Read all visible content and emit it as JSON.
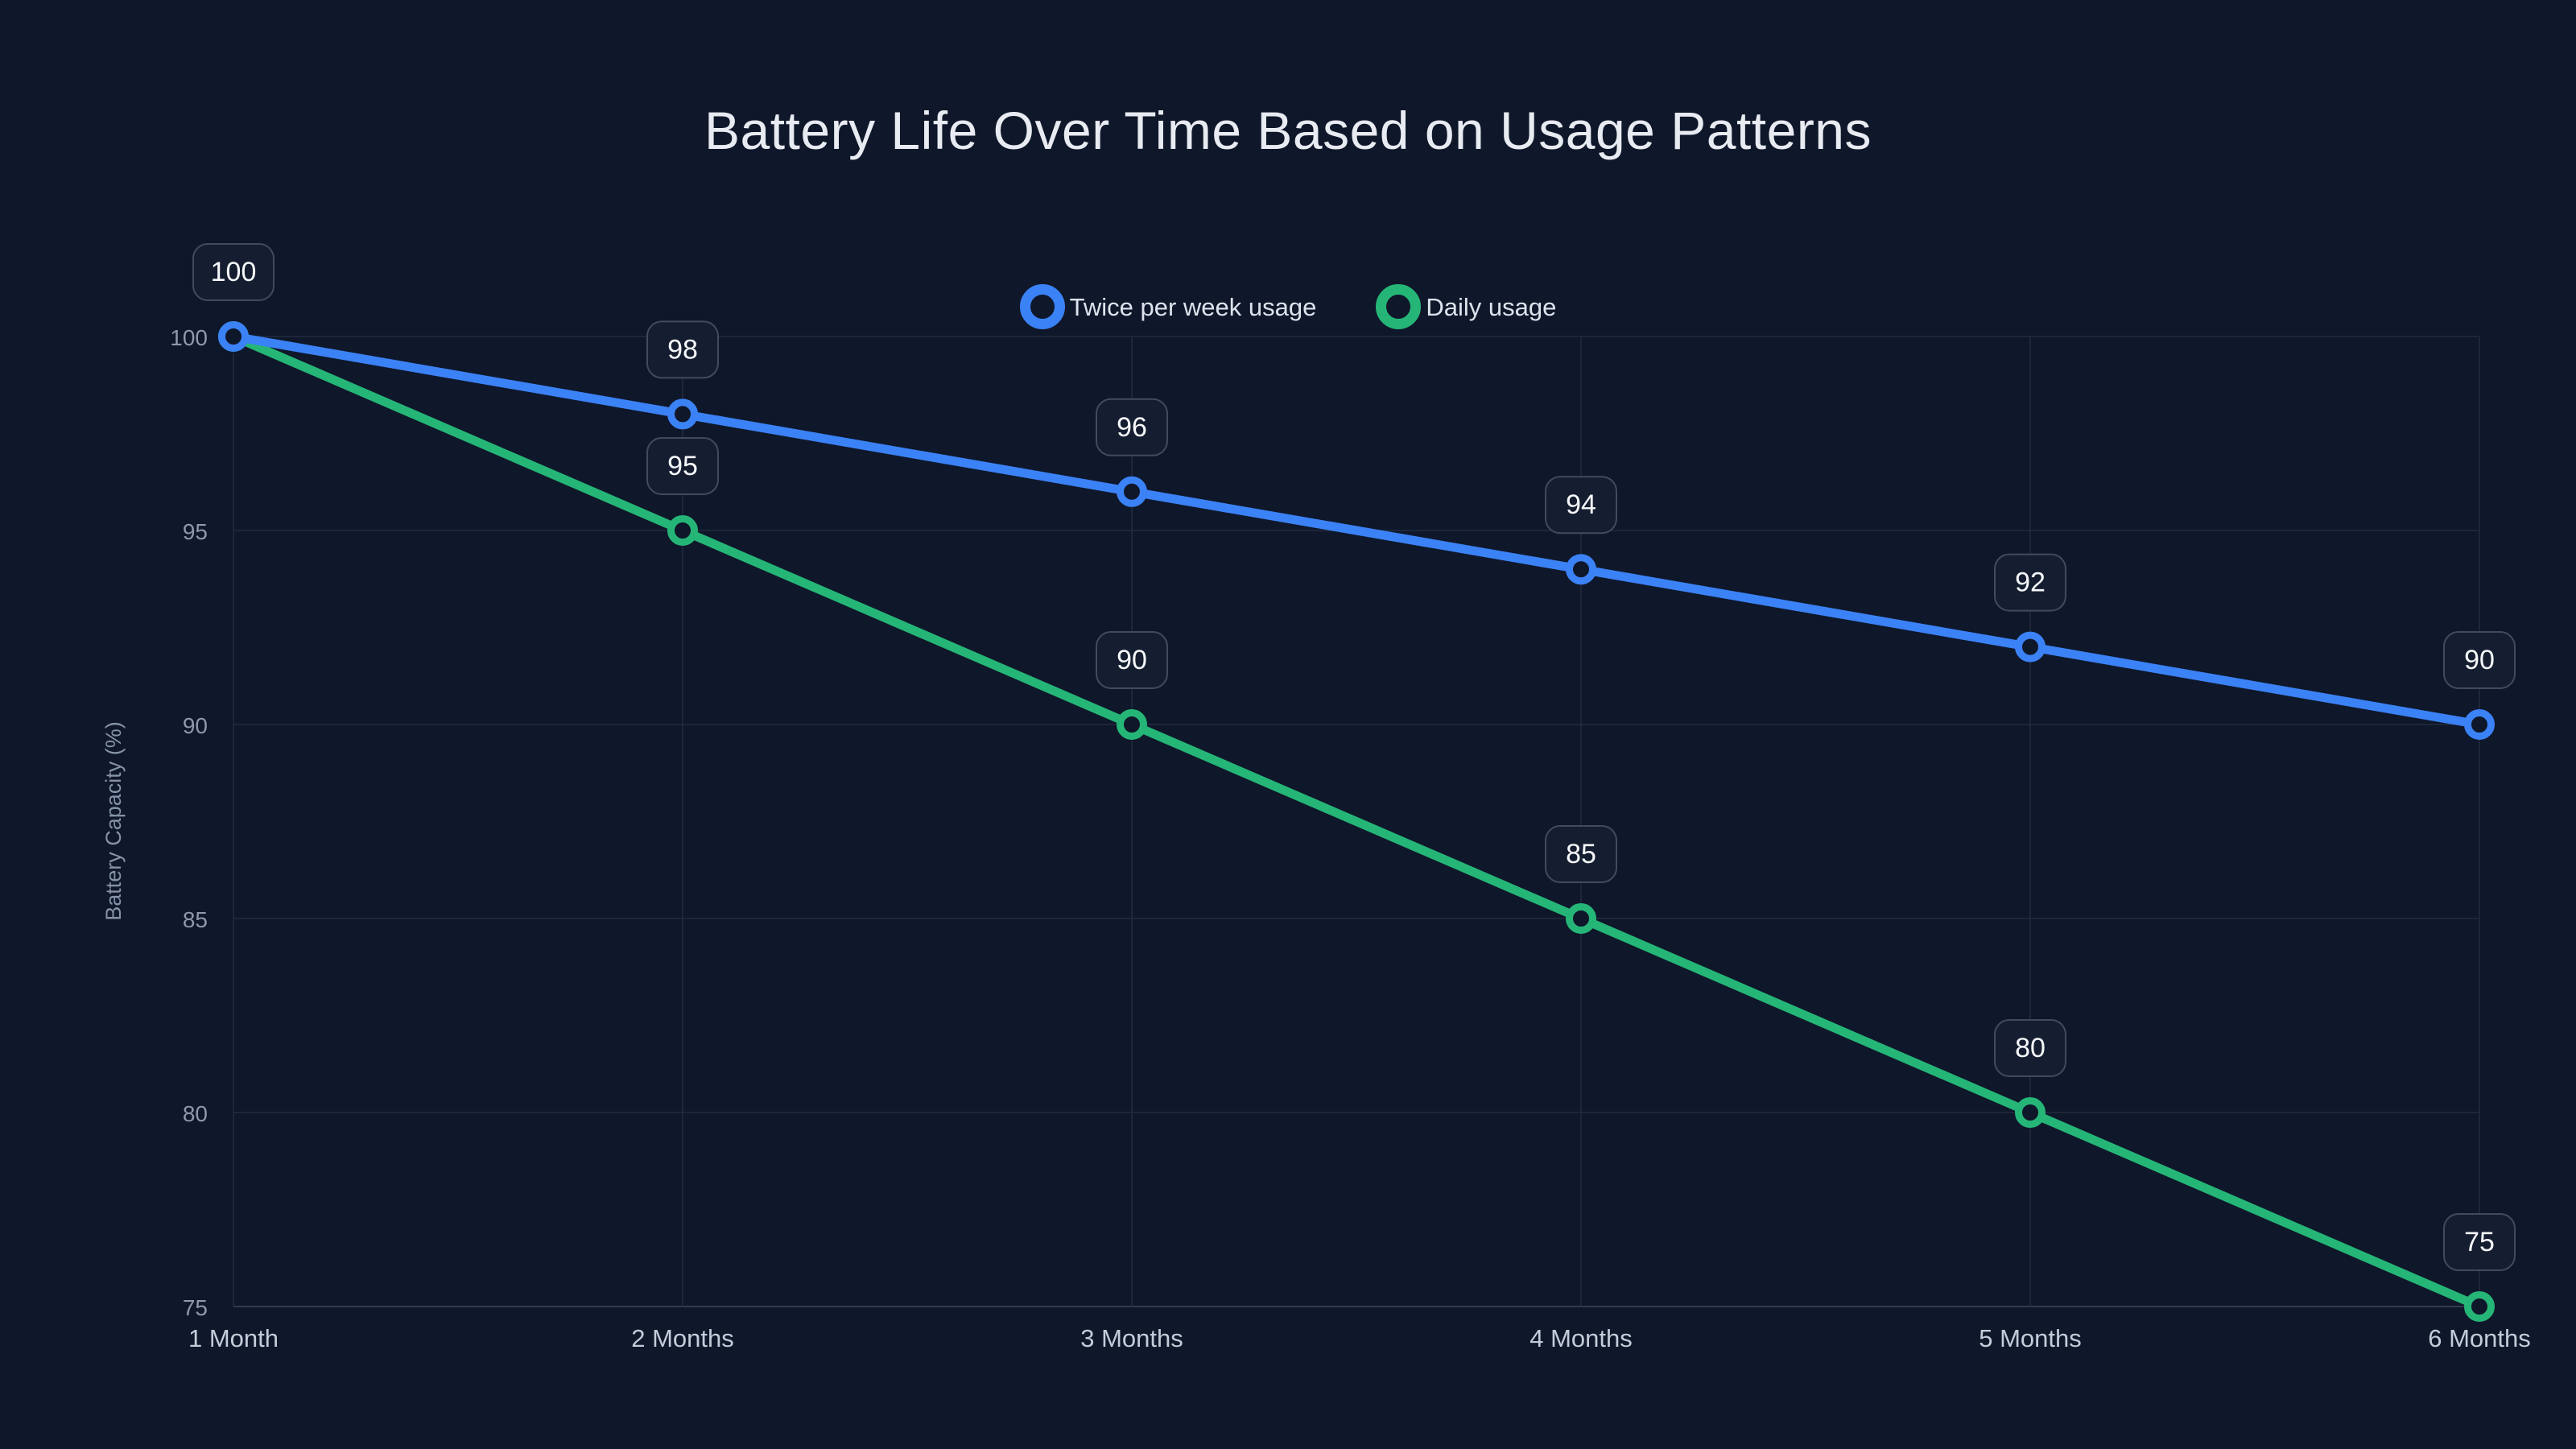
{
  "title": "Battery Life Over Time Based on Usage Patterns",
  "colors": {
    "background": "#0f172a",
    "grid": "#232c3e",
    "axis_line": "#323b4f",
    "title_text": "#e8ebf1",
    "legend_text": "#dde3ec",
    "y_tick_text": "#8d99ac",
    "x_tick_text": "#c3ccd9",
    "y_axis_title_text": "#8493a8",
    "badge_fill": "#151e30",
    "badge_border": "#414b5e",
    "badge_text": "#f5f7fa",
    "series_blue": "#3b82f6",
    "series_green": "#25b677"
  },
  "legend": {
    "items": [
      {
        "label": "Twice per week usage",
        "marker": "ring-icon",
        "color": "#3b82f6"
      },
      {
        "label": "Daily usage",
        "marker": "ring-icon",
        "color": "#25b677"
      }
    ]
  },
  "chart_data": {
    "type": "line",
    "title": "Battery Life Over Time Based on Usage Patterns",
    "xlabel": "",
    "ylabel": "Battery Capacity (%)",
    "categories": [
      "1 Month",
      "2 Months",
      "3 Months",
      "4 Months",
      "5 Months",
      "6 Months"
    ],
    "series": [
      {
        "name": "Twice per week usage",
        "color": "#3b82f6",
        "values": [
          100,
          98,
          96,
          94,
          92,
          90
        ]
      },
      {
        "name": "Daily usage",
        "color": "#25b677",
        "values": [
          100,
          95,
          90,
          85,
          80,
          75
        ]
      }
    ],
    "yticks": [
      100,
      95,
      90,
      85,
      80,
      75
    ],
    "ylim": [
      75,
      100
    ],
    "grid": true,
    "legend_position": "top-center",
    "point_labels": true,
    "marker_style": "open-circle"
  }
}
